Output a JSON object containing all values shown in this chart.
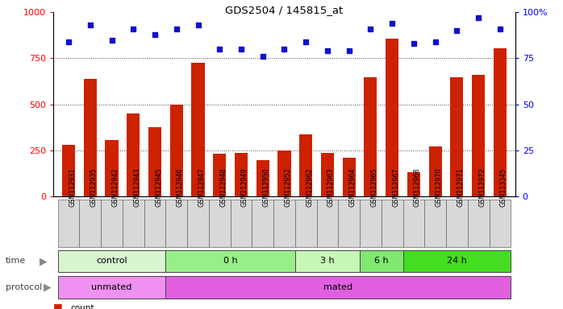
{
  "title": "GDS2504 / 145815_at",
  "samples": [
    "GSM112931",
    "GSM112935",
    "GSM112942",
    "GSM112943",
    "GSM112945",
    "GSM112946",
    "GSM112947",
    "GSM112948",
    "GSM112949",
    "GSM112950",
    "GSM112952",
    "GSM112962",
    "GSM112963",
    "GSM112964",
    "GSM112965",
    "GSM112967",
    "GSM112968",
    "GSM112970",
    "GSM112971",
    "GSM112972",
    "GSM113345"
  ],
  "counts": [
    280,
    640,
    305,
    450,
    375,
    500,
    725,
    230,
    235,
    195,
    250,
    335,
    235,
    210,
    645,
    855,
    130,
    270,
    645,
    660,
    805
  ],
  "percentile": [
    84,
    93,
    85,
    91,
    88,
    91,
    93,
    80,
    80,
    76,
    80,
    84,
    79,
    79,
    91,
    94,
    83,
    84,
    90,
    97,
    91
  ],
  "time_groups": [
    {
      "label": "control",
      "start": 0,
      "end": 5,
      "color": "#d8f5d0"
    },
    {
      "label": "0 h",
      "start": 5,
      "end": 11,
      "color": "#98ee88"
    },
    {
      "label": "3 h",
      "start": 11,
      "end": 14,
      "color": "#c8f5b8"
    },
    {
      "label": "6 h",
      "start": 14,
      "end": 16,
      "color": "#80e870"
    },
    {
      "label": "24 h",
      "start": 16,
      "end": 21,
      "color": "#44dd20"
    }
  ],
  "protocol_groups": [
    {
      "label": "unmated",
      "start": 0,
      "end": 5,
      "color": "#f090f0"
    },
    {
      "label": "mated",
      "start": 5,
      "end": 21,
      "color": "#e060e0"
    }
  ],
  "bar_color": "#cc2200",
  "dot_color": "#1111cc",
  "ylim_left": [
    0,
    1000
  ],
  "ylim_right": [
    0,
    100
  ],
  "yticks_left": [
    0,
    250,
    500,
    750,
    1000
  ],
  "yticks_right": [
    0,
    25,
    50,
    75,
    100
  ],
  "grid_color": "#444444",
  "label_bg": "#d8d8d8"
}
